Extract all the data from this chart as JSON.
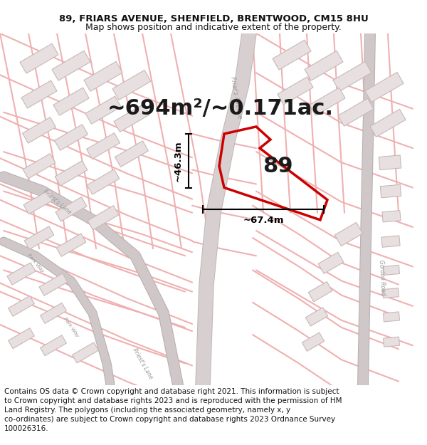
{
  "title_line1": "89, FRIARS AVENUE, SHENFIELD, BRENTWOOD, CM15 8HU",
  "title_line2": "Map shows position and indicative extent of the property.",
  "area_text": "~694m²/~0.171ac.",
  "plot_number": "89",
  "dim_vertical": "~46.3m",
  "dim_horizontal": "~67.4m",
  "footer_text": "Contains OS data © Crown copyright and database right 2021. This information is subject to Crown copyright and database rights 2023 and is reproduced with the permission of HM Land Registry. The polygons (including the associated geometry, namely x, y co-ordinates) are subject to Crown copyright and database rights 2023 Ordnance Survey 100026316.",
  "bg_color": "#ffffff",
  "map_bg": "#ffffff",
  "road_color": "#f0b8b8",
  "road_edge_color": "#e89898",
  "plot_outline_color": "#cc0000",
  "building_fill": "#e8e0e0",
  "building_edge": "#c8b8b8",
  "road_label_color": "#aaaaaa",
  "dim_color": "#000000",
  "area_text_color": "#1a1a1a",
  "plot_num_color": "#1a1a1a",
  "title_fontsize": 9.5,
  "subtitle_fontsize": 9,
  "footer_fontsize": 7.5,
  "area_fontsize": 22,
  "plotnum_fontsize": 22,
  "dim_fontsize": 9.5,
  "road_lw": 6,
  "thin_road_lw": 2.5,
  "plot_lw": 2.5
}
